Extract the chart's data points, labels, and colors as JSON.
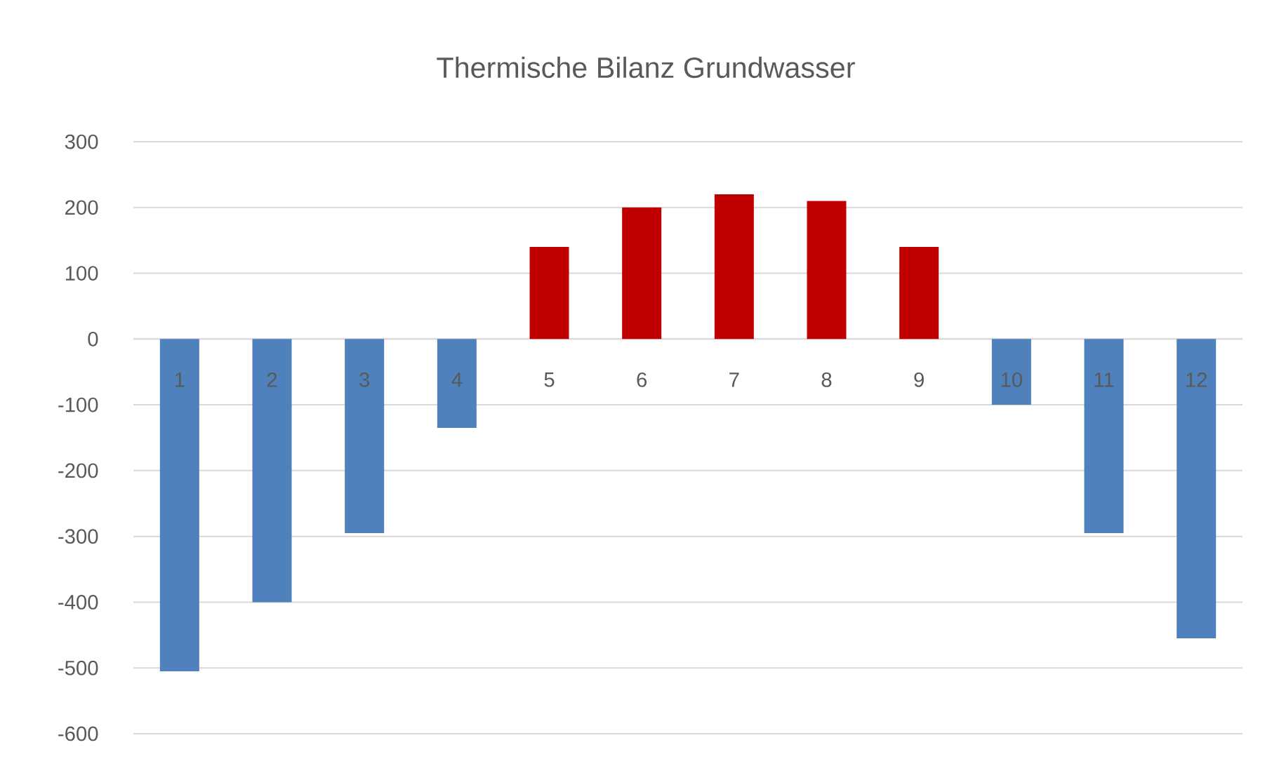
{
  "chart_data": {
    "type": "bar",
    "title": "Thermische Bilanz Grundwasser",
    "categories": [
      "1",
      "2",
      "3",
      "4",
      "5",
      "6",
      "7",
      "8",
      "9",
      "10",
      "11",
      "12"
    ],
    "values": [
      -505,
      -400,
      -295,
      -135,
      140,
      200,
      220,
      210,
      140,
      -100,
      -295,
      -455
    ],
    "colors": [
      "#4f81bd",
      "#4f81bd",
      "#4f81bd",
      "#4f81bd",
      "#c00000",
      "#c00000",
      "#c00000",
      "#c00000",
      "#c00000",
      "#4f81bd",
      "#4f81bd",
      "#4f81bd"
    ],
    "ylim": [
      -600,
      300
    ],
    "yticks": [
      -600,
      -500,
      -400,
      -300,
      -200,
      -100,
      0,
      100,
      200,
      300
    ],
    "grid": "y"
  }
}
